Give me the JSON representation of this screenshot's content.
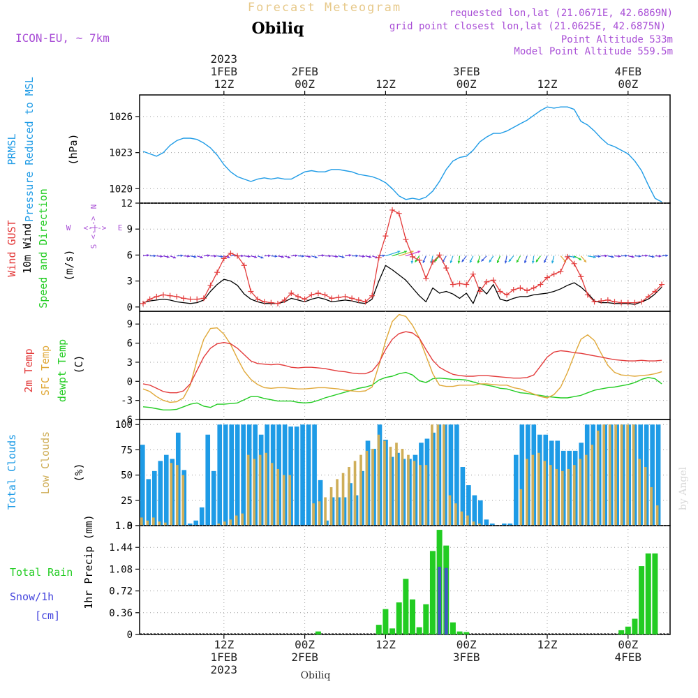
{
  "header": {
    "product": "Forecast Meteogram",
    "location": "Obiliq",
    "model": "ICON-EU, ~ 7km",
    "requested": "requested lon,lat (21.0671E, 42.6869N)",
    "grid": "grid point closest lon,lat (21.0625E, 42.6875N)",
    "altitude": "Point Altitude 533m",
    "model_altitude": "Model Point Altitude 559.5m",
    "footer_location": "Obiliq",
    "credit": "by Angel"
  },
  "colors": {
    "pressure": "#1e9be6",
    "gust": "#e33b3b",
    "wind": "#000000",
    "t2m": "#e33b3b",
    "sfc": "#e0a838",
    "dewpt": "#22cc22",
    "total_clouds": "#1e9be6",
    "low_clouds": "#cfae58",
    "rain": "#22cc22",
    "snow": "#4444dd",
    "purple": "#a94fd6",
    "grid": "#999999"
  },
  "time_axis": {
    "top_ticks": [
      {
        "t": 12,
        "lines": [
          "2023",
          "1FEB",
          "12Z"
        ]
      },
      {
        "t": 24,
        "lines": [
          "2FEB",
          "00Z"
        ]
      },
      {
        "t": 36,
        "lines": [
          "12Z"
        ]
      },
      {
        "t": 48,
        "lines": [
          "3FEB",
          "00Z"
        ]
      },
      {
        "t": 60,
        "lines": [
          "12Z"
        ]
      },
      {
        "t": 72,
        "lines": [
          "4FEB",
          "00Z"
        ]
      }
    ],
    "bottom_ticks": [
      {
        "t": 12,
        "lines": [
          "12Z",
          "1FEB",
          "2023"
        ]
      },
      {
        "t": 24,
        "lines": [
          "00Z",
          "2FEB"
        ]
      },
      {
        "t": 36,
        "lines": [
          "12Z"
        ]
      },
      {
        "t": 48,
        "lines": [
          "00Z",
          "3FEB"
        ]
      },
      {
        "t": 60,
        "lines": [
          "12Z"
        ]
      },
      {
        "t": 72,
        "lines": [
          "00Z",
          "4FEB"
        ]
      }
    ]
  },
  "panels": {
    "pressure": {
      "labels": [
        {
          "text": "PRMSL",
          "color": "#1e9be6"
        },
        {
          "text": "Pressure Reduced to MSL",
          "color": "#1e9be6"
        }
      ],
      "unit": "(hPa)",
      "ticks": [
        "1026",
        "1023",
        "1020"
      ]
    },
    "wind": {
      "labels": [
        {
          "text": "Wind GUST",
          "color": "#e33b3b"
        },
        {
          "text": "10m Wind",
          "color": "#000000"
        },
        {
          "text": "Speed and Direction",
          "color": "#22cc22"
        }
      ],
      "unit": "(m/s)",
      "ticks": [
        "12",
        "9",
        "6",
        "3",
        "0"
      ],
      "compass": {
        "n": "N",
        "s": "S",
        "w": "W",
        "e": "E",
        "arrows": "<-|->"
      }
    },
    "temp": {
      "labels": [
        {
          "text": "2m Temp",
          "color": "#e33b3b"
        },
        {
          "text": "SFC Temp",
          "color": "#e0a838"
        },
        {
          "text": "dewpt Temp",
          "color": "#22cc22"
        }
      ],
      "unit": "(C)",
      "ticks": [
        "9",
        "6",
        "3",
        "0",
        "-3",
        "-6"
      ]
    },
    "clouds": {
      "labels": [
        {
          "text": "Total Clouds",
          "color": "#1e9be6"
        },
        {
          "text": "Low Clouds",
          "color": "#cfae58"
        }
      ],
      "unit": "(%)",
      "ticks": [
        "100",
        "75",
        "50",
        "25",
        "0"
      ]
    },
    "precip": {
      "label_rain": "Total  Rain",
      "label_snow": "Snow/1h",
      "label_snow_unit": "[cm]",
      "unit": "1hr Precip (mm)",
      "ticks": [
        "1.8",
        "1.44",
        "1.08",
        "0.72",
        "0.36",
        "0"
      ]
    }
  },
  "chart_data": [
    {
      "type": "line",
      "title": "PRMSL Pressure Reduced to MSL",
      "ylabel": "(hPa)",
      "ylim": [
        1018.8,
        1027.8
      ],
      "grid": true,
      "x_hours_from_feb1_00z": [
        0,
        1,
        2,
        3,
        4,
        5,
        6,
        7,
        8,
        9,
        10,
        11,
        12,
        13,
        14,
        15,
        16,
        17,
        18,
        19,
        20,
        21,
        22,
        23,
        24,
        25,
        26,
        27,
        28,
        29,
        30,
        31,
        32,
        33,
        34,
        35,
        36,
        37,
        38,
        39,
        40,
        41,
        42,
        43,
        44,
        45,
        46,
        47,
        48,
        49,
        50,
        51,
        52,
        53,
        54,
        55,
        56,
        57,
        58,
        59,
        60,
        61,
        62,
        63,
        64,
        65,
        66,
        67,
        68,
        69,
        70,
        71,
        72,
        73,
        74,
        75,
        76,
        77
      ],
      "series": [
        {
          "name": "PRMSL",
          "values": [
            1023.1,
            1022.9,
            1022.7,
            1023.0,
            1023.6,
            1024.0,
            1024.2,
            1024.2,
            1024.1,
            1023.8,
            1023.4,
            1022.8,
            1022.0,
            1021.4,
            1021.0,
            1020.8,
            1020.6,
            1020.8,
            1020.9,
            1020.8,
            1020.9,
            1020.8,
            1020.8,
            1021.1,
            1021.4,
            1021.5,
            1021.4,
            1021.4,
            1021.6,
            1021.6,
            1021.5,
            1021.4,
            1021.2,
            1021.1,
            1021.0,
            1020.8,
            1020.5,
            1020.0,
            1019.4,
            1019.1,
            1019.2,
            1019.1,
            1019.3,
            1019.8,
            1020.6,
            1021.6,
            1022.3,
            1022.6,
            1022.7,
            1023.2,
            1023.9,
            1024.3,
            1024.6,
            1024.6,
            1024.8,
            1025.1,
            1025.4,
            1025.7,
            1026.1,
            1026.5,
            1026.8,
            1026.7,
            1026.8,
            1026.8,
            1026.6,
            1025.6,
            1025.3,
            1024.8,
            1024.2,
            1023.7,
            1023.5,
            1023.2,
            1022.9,
            1022.3,
            1021.5,
            1020.3,
            1019.2,
            1018.9
          ]
        }
      ]
    },
    {
      "type": "line",
      "title": "Wind GUST / 10m Wind Speed and Direction",
      "ylabel": "(m/s)",
      "ylim": [
        -0.5,
        12
      ],
      "grid": true,
      "gust_x": [
        0,
        1,
        2,
        3,
        4,
        5,
        6,
        7,
        8,
        9,
        10,
        11,
        12,
        13,
        14,
        15,
        16,
        17,
        18,
        19,
        20,
        21,
        22,
        23,
        24,
        25,
        26,
        27,
        28,
        29,
        30,
        31,
        32,
        33,
        34,
        35,
        36,
        37,
        38,
        39,
        40,
        41,
        42,
        43,
        44,
        45,
        46,
        47,
        48,
        49,
        50,
        51,
        52,
        53,
        54,
        55,
        56,
        57,
        58,
        59,
        60,
        61,
        62,
        63,
        64,
        65,
        66,
        67,
        68,
        69,
        70,
        71,
        72,
        73,
        74,
        75,
        76,
        77
      ],
      "series": [
        {
          "name": "Wind GUST",
          "values": [
            0.4,
            0.9,
            1.2,
            1.4,
            1.3,
            1.2,
            1.0,
            0.9,
            0.9,
            1.0,
            2.5,
            4.0,
            5.6,
            6.2,
            5.9,
            4.8,
            1.8,
            0.9,
            0.6,
            0.5,
            0.4,
            0.8,
            1.6,
            1.2,
            0.9,
            1.4,
            1.6,
            1.4,
            1.0,
            1.1,
            1.2,
            1.0,
            0.8,
            0.6,
            1.3,
            5.7,
            8.2,
            11.2,
            10.8,
            7.8,
            5.8,
            5.4,
            3.3,
            5.2,
            6.0,
            4.5,
            2.6,
            2.7,
            2.6,
            3.8,
            1.8,
            2.9,
            3.1,
            1.8,
            1.4,
            2.0,
            2.2,
            1.9,
            2.2,
            2.6,
            3.4,
            3.8,
            4.1,
            5.8,
            5.0,
            3.5,
            1.4,
            0.6,
            0.7,
            0.8,
            0.6,
            0.5,
            0.5,
            0.5,
            0.6,
            1.2,
            1.8,
            2.6
          ]
        },
        {
          "name": "10m Wind",
          "values": [
            0.5,
            0.7,
            0.8,
            0.9,
            0.8,
            0.6,
            0.5,
            0.4,
            0.5,
            0.8,
            1.8,
            2.6,
            3.2,
            3.0,
            2.5,
            1.5,
            0.9,
            0.6,
            0.4,
            0.4,
            0.4,
            0.6,
            1.0,
            0.8,
            0.6,
            0.9,
            1.1,
            0.9,
            0.6,
            0.7,
            0.8,
            0.7,
            0.5,
            0.4,
            0.9,
            3.0,
            4.8,
            4.3,
            3.7,
            3.1,
            2.2,
            1.3,
            0.6,
            2.2,
            1.6,
            1.8,
            1.5,
            1.0,
            1.6,
            0.4,
            2.3,
            1.5,
            2.6,
            0.9,
            0.7,
            1.0,
            1.2,
            1.2,
            1.4,
            1.5,
            1.6,
            1.8,
            2.1,
            2.5,
            2.8,
            2.3,
            1.6,
            0.7,
            0.5,
            0.5,
            0.4,
            0.4,
            0.4,
            0.3,
            0.6,
            0.9,
            1.5,
            2.3
          ]
        }
      ]
    },
    {
      "type": "line",
      "title": "2m Temp / SFC Temp / dewpt Temp",
      "ylabel": "(C)",
      "ylim": [
        -6,
        11
      ],
      "grid": true,
      "series": [
        {
          "name": "2m Temp",
          "values": [
            -0.4,
            -0.6,
            -1.1,
            -1.6,
            -1.8,
            -1.8,
            -1.5,
            -0.4,
            1.7,
            3.8,
            5.2,
            5.9,
            6.1,
            5.9,
            5.2,
            4.2,
            3.2,
            2.8,
            2.7,
            2.6,
            2.7,
            2.5,
            2.2,
            2.1,
            2.2,
            2.2,
            2.1,
            2.0,
            1.8,
            1.6,
            1.5,
            1.3,
            1.2,
            1.2,
            1.6,
            2.9,
            5.0,
            6.6,
            7.5,
            7.8,
            7.6,
            6.8,
            5.0,
            3.3,
            2.2,
            1.6,
            1.1,
            0.9,
            0.8,
            0.8,
            0.9,
            0.9,
            0.8,
            0.7,
            0.6,
            0.5,
            0.5,
            0.6,
            1.0,
            2.4,
            3.8,
            4.6,
            4.8,
            4.7,
            4.5,
            4.4,
            4.2,
            4.0,
            3.8,
            3.6,
            3.4,
            3.3,
            3.2,
            3.2,
            3.3,
            3.2,
            3.2,
            3.3
          ]
        },
        {
          "name": "SFC Temp",
          "values": [
            -1.2,
            -1.6,
            -2.4,
            -3.0,
            -3.3,
            -3.2,
            -2.6,
            -0.6,
            3.3,
            6.6,
            8.3,
            8.4,
            7.4,
            5.8,
            3.6,
            1.6,
            0.3,
            -0.5,
            -1.0,
            -1.1,
            -1.0,
            -1.0,
            -1.1,
            -1.2,
            -1.2,
            -1.1,
            -1.0,
            -1.0,
            -1.1,
            -1.2,
            -1.4,
            -1.5,
            -1.6,
            -1.5,
            -0.9,
            2.5,
            6.3,
            9.4,
            10.5,
            10.2,
            8.8,
            6.8,
            4.0,
            1.2,
            -0.6,
            -0.8,
            -0.8,
            -0.6,
            -0.6,
            -0.6,
            -0.4,
            -0.4,
            -0.5,
            -0.6,
            -0.6,
            -1.0,
            -1.2,
            -1.6,
            -2.0,
            -2.4,
            -2.6,
            -2.1,
            -0.9,
            1.4,
            4.1,
            6.6,
            7.3,
            6.4,
            4.4,
            2.5,
            1.4,
            1.0,
            0.9,
            0.8,
            0.9,
            1.0,
            1.2,
            1.5
          ]
        },
        {
          "name": "dewpt Temp",
          "values": [
            -4.0,
            -4.1,
            -4.3,
            -4.5,
            -4.5,
            -4.4,
            -4.0,
            -3.6,
            -3.4,
            -3.9,
            -4.1,
            -3.6,
            -3.6,
            -3.5,
            -3.4,
            -2.9,
            -2.4,
            -2.4,
            -2.7,
            -2.9,
            -3.1,
            -3.1,
            -3.1,
            -3.3,
            -3.4,
            -3.3,
            -3.0,
            -2.6,
            -2.3,
            -2.0,
            -1.7,
            -1.4,
            -1.1,
            -0.9,
            -0.6,
            0.2,
            0.6,
            0.8,
            1.2,
            1.4,
            1.0,
            0.1,
            -0.2,
            0.4,
            0.5,
            0.4,
            0.3,
            0.3,
            0.2,
            -0.1,
            -0.4,
            -0.6,
            -0.8,
            -1.1,
            -1.2,
            -1.5,
            -1.8,
            -1.9,
            -2.1,
            -2.2,
            -2.4,
            -2.5,
            -2.6,
            -2.6,
            -2.4,
            -2.2,
            -1.8,
            -1.4,
            -1.2,
            -1.0,
            -0.9,
            -0.7,
            -0.5,
            -0.2,
            0.3,
            0.6,
            0.4,
            -0.4
          ]
        }
      ]
    },
    {
      "type": "bar",
      "title": "Total Clouds / Low Clouds",
      "ylabel": "(%)",
      "ylim": [
        0,
        105
      ],
      "grid": true,
      "series": [
        {
          "name": "Total Clouds",
          "values": [
            80,
            46,
            54,
            64,
            70,
            66,
            92,
            55,
            2,
            5,
            18,
            90,
            54,
            100,
            100,
            100,
            100,
            100,
            100,
            100,
            90,
            100,
            100,
            100,
            100,
            98,
            98,
            100,
            100,
            100,
            45,
            5,
            28,
            28,
            28,
            42,
            30,
            54,
            84,
            76,
            100,
            85,
            68,
            72,
            66,
            66,
            70,
            82,
            86,
            92,
            100,
            100,
            100,
            100,
            58,
            40,
            30,
            25,
            6,
            2,
            0,
            2,
            2,
            70,
            100,
            100,
            100,
            90,
            90,
            84,
            84,
            74,
            74,
            74,
            82,
            100,
            100,
            100,
            100,
            100,
            100,
            100,
            100,
            100,
            100,
            100,
            100,
            100
          ]
        },
        {
          "name": "Low Clouds",
          "values": [
            8,
            5,
            8,
            4,
            3,
            62,
            60,
            50,
            0,
            0,
            0,
            0,
            0,
            2,
            4,
            6,
            10,
            12,
            70,
            66,
            70,
            72,
            62,
            56,
            50,
            50,
            0,
            0,
            0,
            22,
            24,
            28,
            38,
            46,
            52,
            58,
            64,
            70,
            74,
            76,
            90,
            84,
            78,
            82,
            76,
            70,
            64,
            60,
            60,
            100,
            100,
            100,
            30,
            22,
            14,
            10,
            4,
            2,
            0,
            0,
            0,
            0,
            0,
            0,
            36,
            66,
            70,
            72,
            64,
            60,
            56,
            54,
            56,
            60,
            66,
            70,
            80,
            94,
            100,
            100,
            100,
            100,
            100,
            100,
            66,
            58,
            38,
            20
          ]
        }
      ],
      "bar_start_hour": 0.0,
      "bar_step_hours": 0.88
    },
    {
      "type": "bar",
      "title": "1hr Precip",
      "ylabel": "1hr Precip (mm)",
      "ylim": [
        0,
        1.8
      ],
      "grid": true,
      "x_hours_from_feb1_00z": [
        26,
        35,
        36,
        37,
        38,
        39,
        40,
        41,
        42,
        43,
        44,
        45,
        46,
        47,
        48,
        49,
        50,
        71,
        72,
        73,
        74,
        75,
        76
      ],
      "series": [
        {
          "name": "Total Rain",
          "values": [
            0.05,
            0.16,
            0.42,
            0.1,
            0.53,
            0.92,
            0.58,
            0.12,
            0.5,
            1.38,
            1.73,
            1.47,
            0.2,
            0.05,
            0.04,
            0.0,
            0.0,
            0.07,
            0.13,
            0.26,
            1.13,
            1.34,
            1.34
          ]
        },
        {
          "name": "Snow/1h",
          "values": [
            0,
            0,
            0,
            0,
            0,
            0,
            0,
            0,
            0,
            0,
            1.12,
            1.1,
            0,
            0,
            0,
            0,
            0,
            0,
            0,
            0,
            0,
            0,
            0
          ]
        }
      ]
    }
  ]
}
